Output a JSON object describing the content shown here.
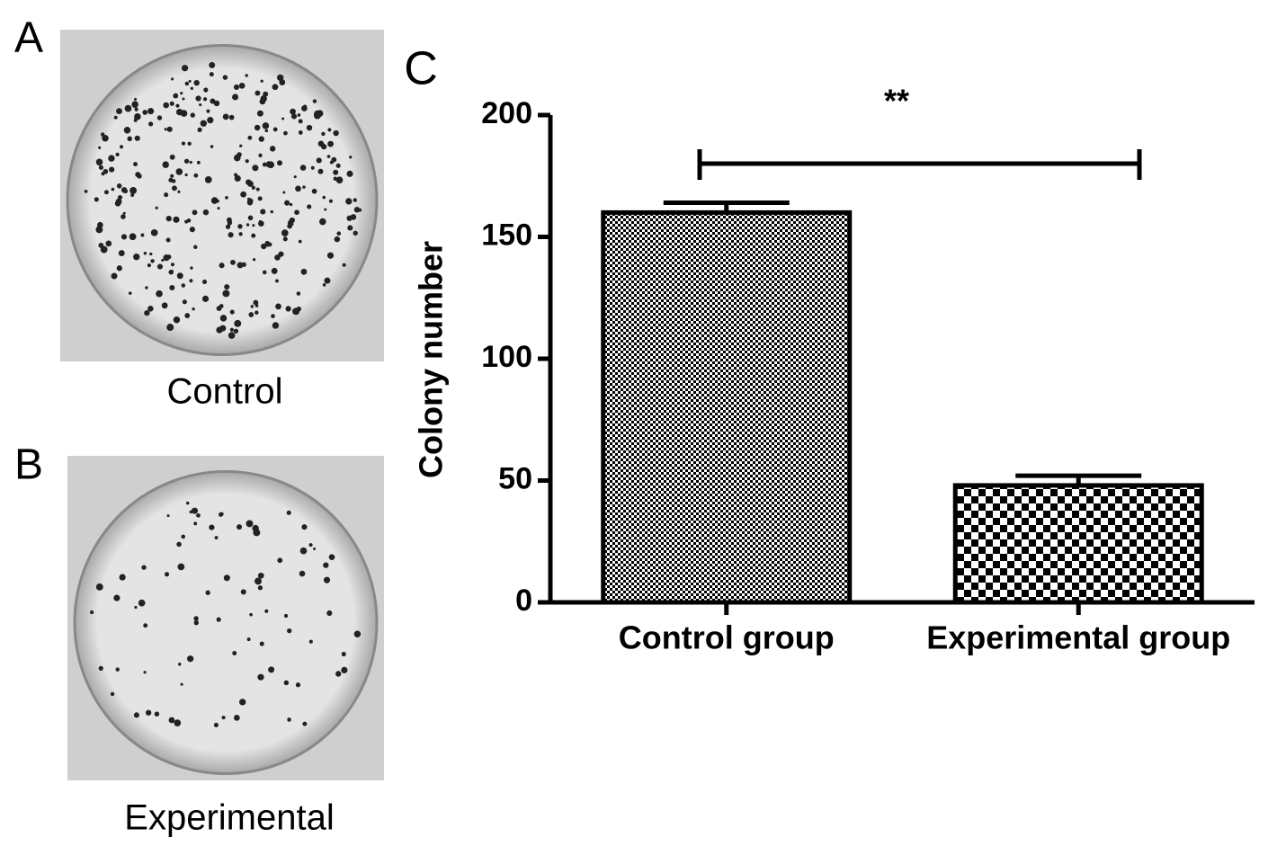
{
  "panels": [
    {
      "label": "A",
      "caption": "Control"
    },
    {
      "label": "B",
      "caption": "Experimental"
    }
  ],
  "chart_label": "C",
  "chart_data": {
    "type": "bar",
    "ylabel": "Colony number",
    "categories": [
      "Control group",
      "Experimental group"
    ],
    "values": [
      160,
      48
    ],
    "errors": [
      4,
      4
    ],
    "color": "#000000",
    "ylim": [
      0,
      200
    ],
    "yticks": [
      0,
      50,
      100,
      150,
      200
    ],
    "annotation": "**"
  }
}
